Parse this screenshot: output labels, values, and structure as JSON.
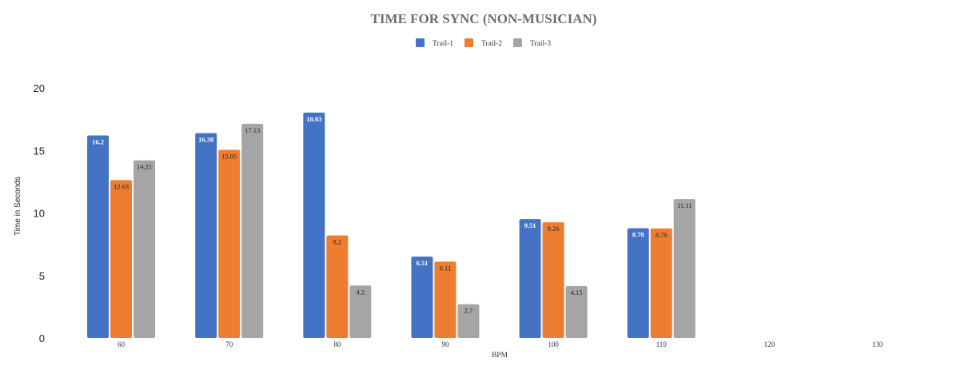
{
  "chart_data": {
    "type": "bar",
    "title": "TIME FOR SYNC (NON-MUSICIAN)",
    "xlabel": "BPM",
    "ylabel": "Time in Seconds",
    "categories": [
      "60",
      "70",
      "80",
      "90",
      "100",
      "110",
      "120",
      "130"
    ],
    "series": [
      {
        "name": "Trail-1",
        "color": "#4472c4",
        "values": [
          16.2,
          16.38,
          18.03,
          6.51,
          9.51,
          8.78,
          null,
          null
        ]
      },
      {
        "name": "Trail-2",
        "color": "#ed7d31",
        "values": [
          12.63,
          15.05,
          8.2,
          6.11,
          9.26,
          8.76,
          null,
          null
        ]
      },
      {
        "name": "Trail-3",
        "color": "#a5a5a5",
        "values": [
          14.21,
          17.13,
          4.2,
          2.7,
          4.15,
          11.11,
          null,
          null
        ]
      }
    ],
    "ylim": [
      0,
      20
    ],
    "yticks": [
      0,
      5,
      10,
      15,
      20
    ],
    "grid": false,
    "legend_position": "top"
  }
}
